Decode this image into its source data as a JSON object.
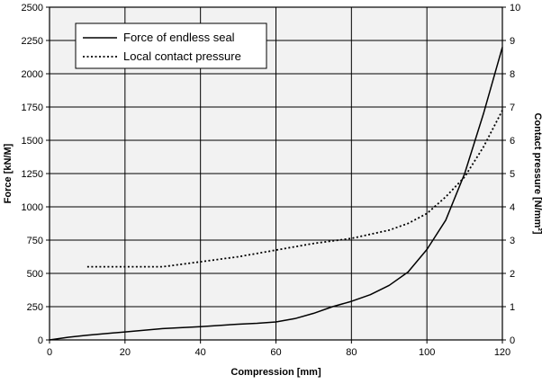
{
  "chart_data": {
    "type": "line",
    "xlabel": "Compression [mm]",
    "ylabel": "Force [kN/M]",
    "y2label": "Contact pressure [N/mm²]",
    "xlim": [
      0,
      120
    ],
    "ylim": [
      0,
      2500
    ],
    "y2lim": [
      0,
      10
    ],
    "xticks": [
      0,
      20,
      40,
      60,
      80,
      100,
      120
    ],
    "yticks": [
      0,
      250,
      500,
      750,
      1000,
      1250,
      1500,
      1750,
      2000,
      2250,
      2500
    ],
    "y2ticks": [
      0,
      1,
      2,
      3,
      4,
      5,
      6,
      7,
      8,
      9,
      10
    ],
    "grid": "horizontal major gridlines; vertical lines at every 20 mm",
    "legend_position": "top-left",
    "series": [
      {
        "name": "Force of endless seal",
        "axis": "left",
        "style": "solid",
        "color": "#000000",
        "x": [
          0,
          5,
          10,
          20,
          30,
          40,
          50,
          55,
          60,
          65,
          70,
          75,
          80,
          85,
          90,
          95,
          100,
          105,
          110,
          115,
          120
        ],
        "y": [
          0,
          20,
          35,
          60,
          85,
          100,
          118,
          125,
          135,
          160,
          200,
          250,
          290,
          340,
          410,
          510,
          680,
          900,
          1250,
          1700,
          2200
        ]
      },
      {
        "name": "Local contact pressure",
        "axis": "right",
        "style": "dotted",
        "color": "#000000",
        "x": [
          10,
          20,
          30,
          40,
          50,
          60,
          70,
          80,
          90,
          95,
          100,
          105,
          110,
          115,
          120
        ],
        "y": [
          2.2,
          2.2,
          2.2,
          2.35,
          2.5,
          2.7,
          2.9,
          3.05,
          3.3,
          3.5,
          3.8,
          4.3,
          4.9,
          5.8,
          6.9
        ]
      }
    ]
  },
  "style": {
    "plot_background": "#f2f2f2",
    "grid_color": "#000000",
    "line_color": "#000000"
  }
}
